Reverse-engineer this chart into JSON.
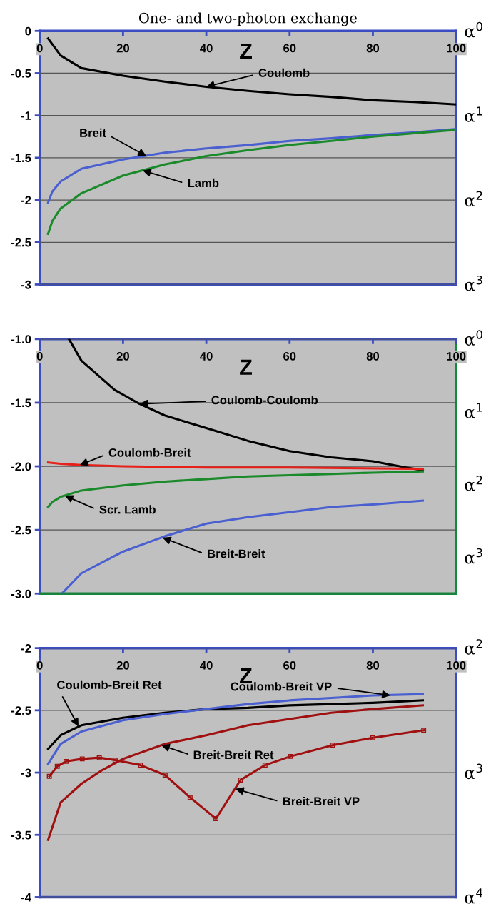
{
  "chart_data": [
    {
      "type": "line",
      "title": "One- and two-photon exchange",
      "xlabel": "Z",
      "xlim": [
        0,
        100
      ],
      "xticks": [
        0,
        20,
        40,
        60,
        80,
        100
      ],
      "ylim": [
        -3,
        0
      ],
      "yticks": [
        0,
        -0.5,
        -1,
        -1.5,
        -2,
        -2.5,
        -3
      ],
      "y2lim": [
        3,
        0
      ],
      "y2ticks": [
        {
          "value": 0,
          "label": "α$^{0}$"
        },
        {
          "value": 1,
          "label": "α$^{1}$"
        },
        {
          "value": 2,
          "label": "α$^{2}$"
        },
        {
          "value": 3,
          "label": "α$^{3}$"
        }
      ],
      "grid": "y",
      "legend": false,
      "marker": "none",
      "line_style": "solid",
      "series": [
        {
          "color": "#000000",
          "x": [
            2,
            5,
            10,
            20,
            30,
            40,
            50,
            60,
            70,
            80,
            90,
            100
          ],
          "values": [
            -0.09,
            -0.29,
            -0.44,
            -0.53,
            -0.6,
            -0.66,
            -0.71,
            -0.75,
            -0.78,
            -0.82,
            -0.84,
            -0.87
          ]
        },
        {
          "color": "#4a5fd0",
          "x": [
            2,
            3,
            5,
            10,
            20,
            30,
            40,
            50,
            60,
            70,
            80,
            90,
            100
          ],
          "values": [
            -2.03,
            -1.9,
            -1.78,
            -1.63,
            -1.52,
            -1.44,
            -1.39,
            -1.35,
            -1.3,
            -1.27,
            -1.23,
            -1.2,
            -1.16
          ]
        },
        {
          "color": "#1a8a2a",
          "x": [
            2,
            3,
            5,
            10,
            20,
            30,
            40,
            50,
            60,
            70,
            80,
            90,
            100
          ],
          "values": [
            -2.4,
            -2.25,
            -2.1,
            -1.92,
            -1.71,
            -1.58,
            -1.48,
            -1.41,
            -1.35,
            -1.3,
            -1.25,
            -1.21,
            -1.17
          ]
        }
      ],
      "annotations": [
        {
          "text": "Coulomb",
          "x": 40,
          "y": -0.66
        },
        {
          "text": "Breit",
          "x": 25.6,
          "y": -1.48
        },
        {
          "text": "Lamb",
          "x": 24.7,
          "y": -1.65
        }
      ]
    },
    {
      "type": "line",
      "xlabel": "Z",
      "xlim": [
        0,
        100
      ],
      "xticks": [
        0,
        20,
        40,
        60,
        80,
        100
      ],
      "ylim": [
        -3,
        -1
      ],
      "yticks": [
        {
          "value": -1.0,
          "label": "-1.0"
        },
        {
          "value": -1.5,
          "label": "-1.5"
        },
        {
          "value": -2.0,
          "label": "-2.0"
        },
        {
          "value": -2.5,
          "label": "-2.5"
        },
        {
          "value": -3.0,
          "label": "-3.0"
        }
      ],
      "y2lim": [
        3.5,
        0
      ],
      "y2ticks": [
        {
          "value": 0,
          "label": "α$^{0}$"
        },
        {
          "value": 1,
          "label": "α$^{1}$"
        },
        {
          "value": 2,
          "label": "α$^{2}$"
        },
        {
          "value": 3,
          "label": "α$^{3}$"
        }
      ],
      "grid": "y",
      "legend": false,
      "marker": "none",
      "line_style": "solid",
      "series": [
        {
          "color": "#000000",
          "x": [
            7,
            10,
            18,
            24,
            30,
            40,
            50,
            60,
            70,
            80,
            88,
            92
          ],
          "values": [
            -1.0,
            -1.17,
            -1.4,
            -1.51,
            -1.6,
            -1.7,
            -1.8,
            -1.88,
            -1.93,
            -1.96,
            -2.01,
            -2.03
          ]
        },
        {
          "color": "#e8201a",
          "x": [
            2,
            5,
            10,
            20,
            40,
            60,
            92
          ],
          "values": [
            -1.97,
            -1.98,
            -1.99,
            -2.0,
            -2.01,
            -2.01,
            -2.02
          ]
        },
        {
          "color": "#1a8a2a",
          "x": [
            2,
            3,
            5,
            10,
            20,
            30,
            40,
            50,
            60,
            70,
            80,
            92
          ],
          "values": [
            -2.32,
            -2.28,
            -2.24,
            -2.19,
            -2.15,
            -2.12,
            -2.1,
            -2.08,
            -2.07,
            -2.06,
            -2.05,
            -2.04
          ]
        },
        {
          "color": "#4a5fd0",
          "x": [
            5.3,
            10,
            20,
            30,
            40,
            50,
            60,
            70,
            80,
            92
          ],
          "values": [
            -3.0,
            -2.84,
            -2.67,
            -2.55,
            -2.45,
            -2.4,
            -2.36,
            -2.32,
            -2.3,
            -2.27
          ]
        }
      ],
      "annotations": [
        {
          "text": "Coulomb-Coulomb",
          "x": 24,
          "y": -1.51
        },
        {
          "text": "Coulomb-Breit",
          "x": 9.6,
          "y": -1.99
        },
        {
          "text": "Scr. Lamb",
          "x": 6,
          "y": -2.23
        },
        {
          "text": "Breit-Breit",
          "x": 29.5,
          "y": -2.56
        }
      ]
    },
    {
      "type": "line",
      "xlabel": "Z",
      "xlim": [
        0,
        100
      ],
      "xticks": [
        0,
        20,
        40,
        60,
        80,
        100
      ],
      "ylim": [
        -4,
        -2
      ],
      "yticks": [
        -2,
        -2.5,
        -3,
        -3.5,
        -4
      ],
      "y2lim": [
        4,
        2
      ],
      "y2ticks": [
        {
          "value": 2,
          "label": "α$^{2}$"
        },
        {
          "value": 3,
          "label": "α$^{3}$"
        },
        {
          "value": 4,
          "label": "α$^{4}$"
        }
      ],
      "grid": "y",
      "legend": false,
      "marker": "none",
      "line_style": "solid",
      "series": [
        {
          "color": "#000000",
          "x": [
            2,
            5,
            10,
            20,
            30,
            40,
            50,
            60,
            70,
            80,
            92
          ],
          "values": [
            -2.81,
            -2.7,
            -2.62,
            -2.56,
            -2.52,
            -2.49,
            -2.48,
            -2.46,
            -2.45,
            -2.44,
            -2.42
          ]
        },
        {
          "color": "#4a5fd0",
          "x": [
            2,
            5,
            10,
            20,
            30,
            40,
            50,
            60,
            70,
            80,
            92
          ],
          "values": [
            -2.93,
            -2.77,
            -2.67,
            -2.58,
            -2.53,
            -2.49,
            -2.45,
            -2.42,
            -2.4,
            -2.38,
            -2.37
          ]
        },
        {
          "color": "#a01010",
          "x": [
            2,
            3,
            5,
            10,
            15,
            20,
            30,
            40,
            50,
            60,
            70,
            80,
            92
          ],
          "values": [
            -3.54,
            -3.44,
            -3.24,
            -3.09,
            -2.98,
            -2.89,
            -2.77,
            -2.7,
            -2.62,
            -2.57,
            -2.52,
            -2.49,
            -2.46
          ]
        },
        {
          "color": "#a01010",
          "marker": "square",
          "x": [
            2.3,
            4.2,
            6.3,
            10.2,
            14.3,
            18.1,
            24.2,
            30.1,
            36.1,
            42.3,
            48.2,
            54.1,
            60.2,
            70.3,
            80,
            92.2
          ],
          "values": [
            -3.03,
            -2.95,
            -2.91,
            -2.89,
            -2.88,
            -2.9,
            -2.94,
            -3.02,
            -3.2,
            -3.37,
            -3.06,
            -2.94,
            -2.87,
            -2.78,
            -2.72,
            -2.66
          ]
        }
      ],
      "annotations": [
        {
          "text": "Coulomb-Breit Ret",
          "x": 9.3,
          "y": -2.63
        },
        {
          "text": "Coulomb-Breit VP",
          "x": 84.2,
          "y": -2.38
        },
        {
          "text": "Breit-Breit Ret",
          "x": 29.2,
          "y": -2.78
        },
        {
          "text": "Breit-Breit VP",
          "x": 47,
          "y": -3.13
        }
      ]
    }
  ]
}
